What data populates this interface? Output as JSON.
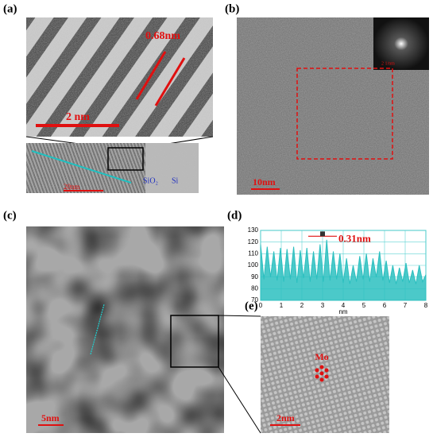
{
  "panels": {
    "a": {
      "label": "(a)",
      "spacing": "0.68nm",
      "scale_bar": "2 nm",
      "inset_scale_bar": "20nm",
      "layers": [
        "SiO₂",
        "Si"
      ]
    },
    "b": {
      "label": "(b)",
      "scale_bar": "10nm",
      "inset_scale_bar": "2 1/nm"
    },
    "c": {
      "label": "(c)",
      "scale_bar": "5nm"
    },
    "d": {
      "label": "(d)"
    },
    "e": {
      "label": "(e)",
      "atom": "Mo",
      "scale_bar": "2nm"
    }
  },
  "chart_data": {
    "type": "area",
    "annotation": "0.31nm",
    "xlabel": "nm",
    "color": "#2cbfbf",
    "grid": true,
    "x": [
      0,
      0.16,
      0.32,
      0.48,
      0.64,
      0.8,
      0.96,
      1.12,
      1.28,
      1.44,
      1.6,
      1.76,
      1.92,
      2.08,
      2.24,
      2.4,
      2.56,
      2.72,
      2.88,
      3.04,
      3.2,
      3.36,
      3.52,
      3.68,
      3.84,
      4,
      4.16,
      4.32,
      4.48,
      4.64,
      4.8,
      4.96,
      5.12,
      5.28,
      5.44,
      5.6,
      5.76,
      5.92,
      6.08,
      6.24,
      6.4,
      6.56,
      6.72,
      6.88,
      7.04,
      7.2,
      7.36,
      7.52,
      7.68,
      7.84,
      8
    ],
    "values": [
      118,
      88,
      116,
      90,
      112,
      87,
      115,
      86,
      114,
      88,
      116,
      85,
      113,
      89,
      115,
      86,
      112,
      88,
      118,
      86,
      122,
      87,
      112,
      88,
      110,
      85,
      106,
      84,
      100,
      86,
      108,
      88,
      110,
      86,
      106,
      90,
      112,
      87,
      104,
      85,
      100,
      84,
      98,
      86,
      102,
      85,
      96,
      84,
      100,
      86,
      92
    ],
    "xlim": [
      0,
      8
    ],
    "ylim": [
      70,
      130
    ],
    "xticks": [
      0,
      1,
      2,
      3,
      4,
      5,
      6,
      7,
      8
    ],
    "yticks": [
      70,
      80,
      90,
      100,
      110,
      120,
      130
    ]
  }
}
